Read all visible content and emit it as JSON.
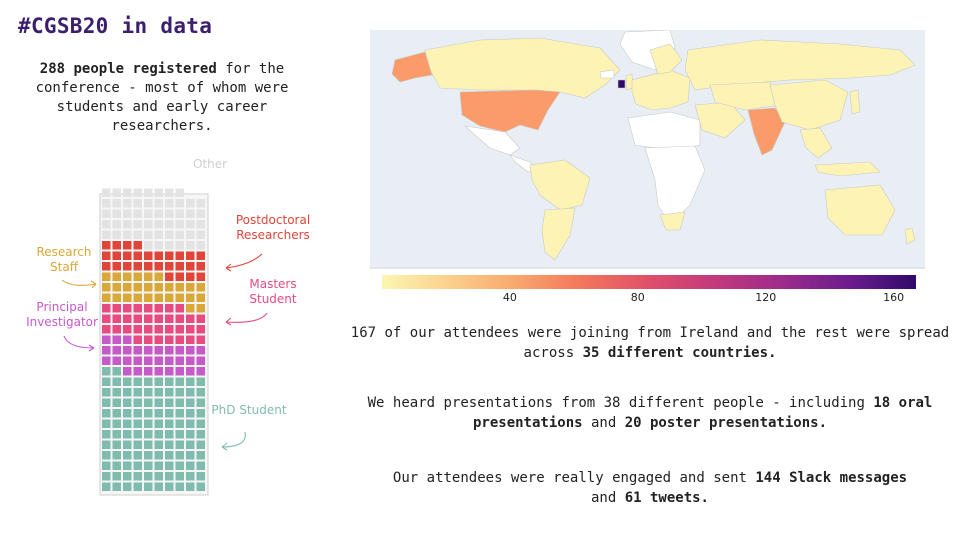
{
  "page": {
    "title": "#CGSB20 in data",
    "intro": {
      "highlight": "288 people registered",
      "rest": " for the conference - most of whom were students and early career researchers."
    }
  },
  "chart_data": [
    {
      "type": "waffle",
      "title": "",
      "series": [
        {
          "name": "Other",
          "values": [
            54
          ],
          "color": "#e3e3e3"
        },
        {
          "name": "Postdoctoral Researchers",
          "values": [
            28
          ],
          "color": "#e0453a"
        },
        {
          "name": "Research Staff",
          "values": [
            28
          ],
          "color": "#d9a838"
        },
        {
          "name": "Masters Student",
          "values": [
            35
          ],
          "color": "#e74b7f"
        },
        {
          "name": "Principal Investigator",
          "values": [
            31
          ],
          "color": "#c55ac8"
        },
        {
          "name": "PhD Student",
          "values": [
            112
          ],
          "color": "#7fbcad"
        }
      ],
      "labels": {
        "other": "Other",
        "postdoc": "Postdoctoral Researchers",
        "research_staff": "Research Staff",
        "masters": "Masters Student",
        "pi": "Principal Investigator",
        "phd": "PhD Student"
      }
    },
    {
      "type": "choropleth",
      "title": "",
      "colorbar": {
        "ticks": [
          "40",
          "80",
          "120",
          "160"
        ],
        "range": [
          0,
          167
        ]
      },
      "highlighted_countries": [
        "Ireland",
        "United States",
        "India",
        "Alaska",
        "Canada",
        "Russia",
        "China",
        "Brazil",
        "Australia"
      ],
      "values": {
        "Ireland": 167,
        "United States": 30,
        "India": 25
      }
    }
  ],
  "stats": {
    "ireland_text": "167 of our attendees were joining from Ireland and the rest were spread across ",
    "countries_bold": "35 different countries.",
    "presentations_text": "We heard presentations from 38 different people - including ",
    "oral_bold": "18 oral presentations",
    "and_text": " and ",
    "poster_bold": "20 poster presentations.",
    "engaged_text": "Our attendees were really engaged and sent ",
    "slack_bold": "144 Slack messages",
    "tweets_text": " and ",
    "tweets_bold": "61 tweets."
  }
}
